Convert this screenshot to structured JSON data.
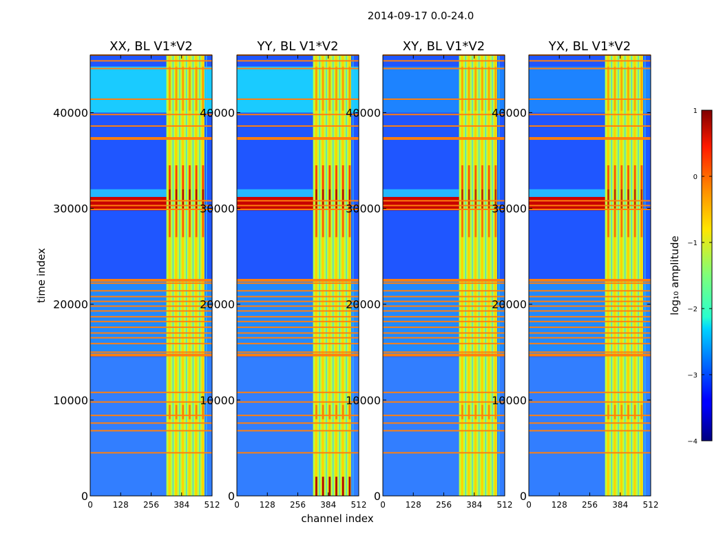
{
  "chart_data": {
    "type": "heatmap",
    "suptitle": "2014-09-17 0.0-24.0",
    "xlabel": "channel index",
    "ylabel": "time index",
    "xlim": [
      0,
      512
    ],
    "ylim": [
      0,
      46000
    ],
    "xticks": [
      0,
      128,
      256,
      384,
      512
    ],
    "yticks": [
      0,
      10000,
      20000,
      30000,
      40000
    ],
    "colorscale": "jet",
    "colorbar": {
      "label": "log₁₀ amplitude",
      "min": -4,
      "max": 1,
      "ticks": [
        "1",
        "0",
        "−1",
        "−2",
        "−3",
        "−4"
      ]
    },
    "panels": [
      {
        "title": "XX, BL V1*V2"
      },
      {
        "title": "YY, BL V1*V2"
      },
      {
        "title": "XY, BL V1*V2"
      },
      {
        "title": "YX, BL V1*V2"
      }
    ],
    "rfi_channel_band": [
      320,
      480
    ],
    "broadband_rfi_time_band": [
      29800,
      31200
    ],
    "flagged_time_rows": [
      46000,
      45400,
      44600,
      41400,
      39800,
      38600,
      37300,
      30800,
      30300,
      29900,
      22500,
      22200,
      21400,
      20800,
      20300,
      19800,
      19300,
      18700,
      18200,
      17600,
      17000,
      16500,
      15900,
      15000,
      14700,
      10800,
      9800,
      8400,
      7600,
      6800,
      4500
    ]
  }
}
